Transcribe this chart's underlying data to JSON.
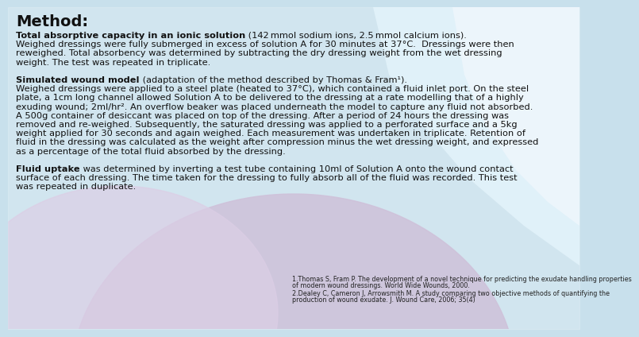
{
  "title": "Method:",
  "text_color": "#111111",
  "title_fontsize": 14,
  "body_fontsize": 8.2,
  "ref_fontsize": 5.8,
  "section1_bold": "Total absorptive capacity in an ionic solution",
  "section1_bold_suffix": " (142 mmol sodium ions, 2.5 mmol calcium ions).",
  "section1_body": "Weighed dressings were fully submerged in excess of solution A for 30 minutes at 37°C.  Dressings were then\nreweighed. Total absorbency was determined by subtracting the dry dressing weight from the wet dressing\nweight. The test was repeated in triplicate.",
  "section2_bold": "Simulated wound model",
  "section2_bold_suffix": " (adaptation of the method described by Thomas & Fram¹).",
  "section2_body": "Weighed dressings were applied to a steel plate (heated to 37°C), which contained a fluid inlet port. On the steel\nplate, a 1cm long channel allowed Solution A to be delivered to the dressing at a rate modelling that of a highly\nexuding wound; 2ml/hr². An overflow beaker was placed underneath the model to capture any fluid not absorbed.\nA 500g container of desiccant was placed on top of the dressing. After a period of 24 hours the dressing was\nremoved and re-weighed. Subsequently, the saturated dressing was applied to a perforated surface and a 5kg\nweight applied for 30 seconds and again weighed. Each measurement was undertaken in triplicate. Retention of\nfluid in the dressing was calculated as the weight after compression minus the wet dressing weight, and expressed\nas a percentage of the total fluid absorbed by the dressing.",
  "section3_bold": "Fluid uptake",
  "section3_body_inline": " was determined by inverting a test tube containing 10ml of Solution A onto the wound contact",
  "section3_body_rest": "surface of each dressing. The time taken for the dressing to fully absorb all of the fluid was recorded. This test\nwas repeated in duplicate.",
  "ref1_line1": "1.Thomas S, Fram P. The development of a novel technique for predicting the exudate handling properties",
  "ref1_line2": "of modern wound dressings. World Wide Wounds, 2000.",
  "ref2_line1": "2.Dealey C, Cameron J, Arrowsmith M. A study comparing two objective methods of quantifying the",
  "ref2_line2": "production of wound exudate. J. Wound Care, 2006; 35(4)",
  "bg_light_blue": "#c8e0ec",
  "bg_lighter_blue": "#d8eaf4",
  "bg_purple": "#c0b0cc",
  "bg_lavender": "#cdc0d8",
  "white_overlay": "#ffffff"
}
